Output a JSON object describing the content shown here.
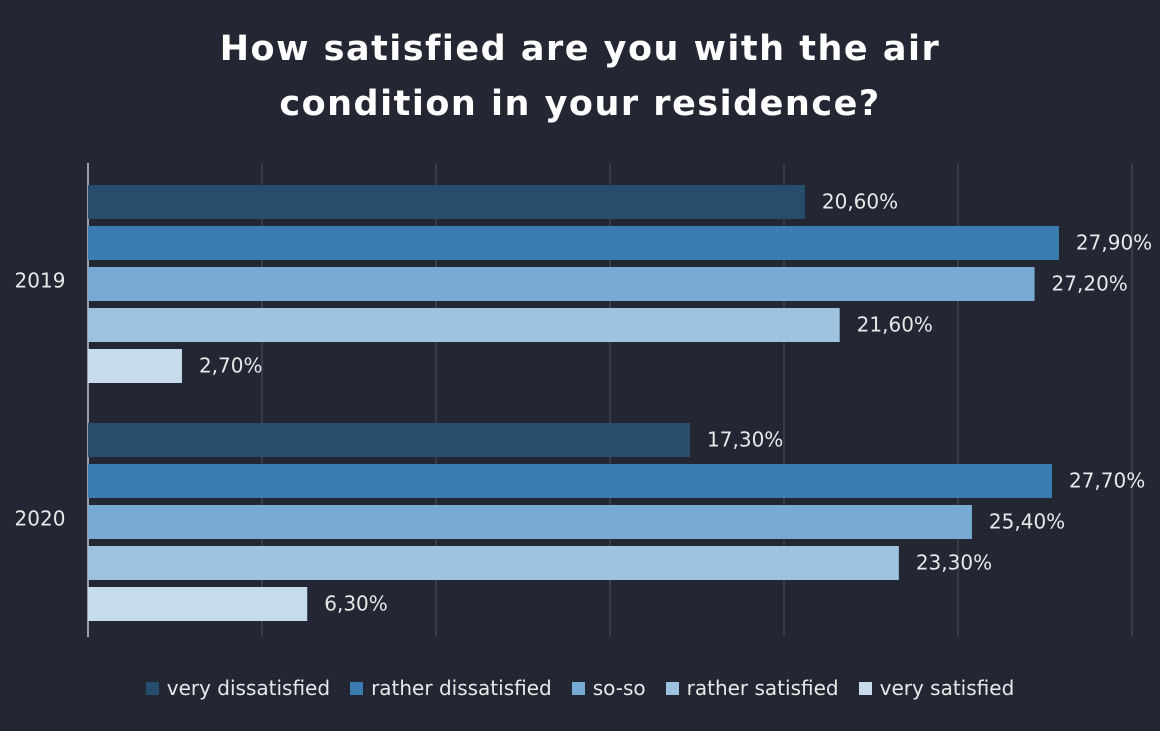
{
  "chart_data": {
    "type": "hbar",
    "title": "How satisfied are you with the air condition in your residence?",
    "categories": [
      "2019",
      "2020"
    ],
    "series": [
      {
        "name": "very dissatisfied",
        "color": "#274d6c",
        "values": [
          20.6,
          17.3
        ],
        "value_labels": [
          "20,60%",
          "17,30%"
        ]
      },
      {
        "name": "rather dissatisfied",
        "color": "#3b7db0",
        "values": [
          27.9,
          27.7
        ],
        "value_labels": [
          "27,90%",
          "27,70%"
        ]
      },
      {
        "name": "so-so",
        "color": "#78abd4",
        "values": [
          27.2,
          25.4
        ],
        "value_labels": [
          "27,20%",
          "25,40%"
        ]
      },
      {
        "name": "rather satisfied",
        "color": "#9dc3e0",
        "values": [
          21.6,
          23.3
        ],
        "value_labels": [
          "21,60%",
          "23,30%"
        ]
      },
      {
        "name": "very satisfied",
        "color": "#c6dcec",
        "values": [
          2.7,
          6.3
        ],
        "value_labels": [
          "2,70%",
          "6,30%"
        ]
      }
    ],
    "xlim": [
      0,
      30
    ],
    "xticks": [
      0,
      5,
      10,
      15,
      20,
      25,
      30
    ],
    "grid": true,
    "legend": "bottom"
  }
}
